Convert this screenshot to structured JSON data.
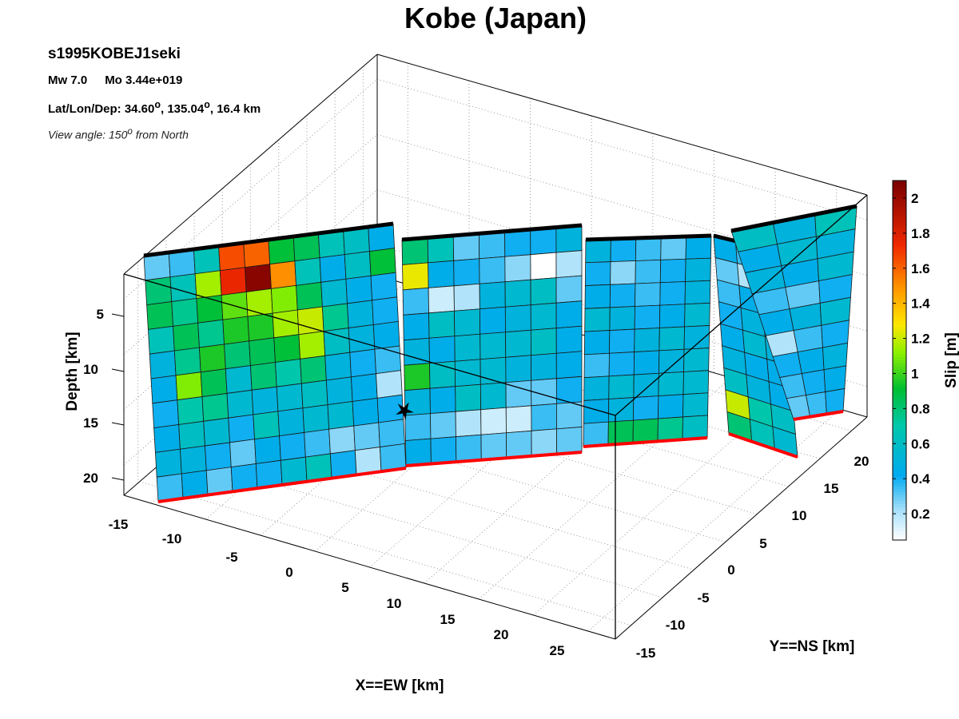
{
  "chart_data": {
    "type": "heatmap",
    "title": "Kobe (Japan)",
    "event_id": "s1995KOBEJ1seki",
    "mw": "Mw 7.0",
    "mo": "Mo 3.44e+019",
    "location_prefix": "Lat/Lon/Dep: 34.60",
    "location_lon": ", 135.04",
    "location_dep": ", 16.4 km",
    "location_deg": "o",
    "view_prefix": "View angle: 150",
    "view_deg": "o",
    "view_suffix": " from North",
    "xlabel": "X==EW [km]",
    "ylabel": "Y==NS [km]",
    "zlabel": "Depth [km]",
    "colorbar_label": "Slip [m]",
    "xticks": [
      "-15",
      "-10",
      "-5",
      "0",
      "5",
      "10",
      "15",
      "20",
      "25"
    ],
    "yticks": [
      "-15",
      "-10",
      "-5",
      "0",
      "5",
      "10",
      "15",
      "20"
    ],
    "zticks": [
      "5",
      "10",
      "15",
      "20"
    ],
    "colorbar_ticks": [
      "0.2",
      "0.4",
      "0.6",
      "0.8",
      "1",
      "1.2",
      "1.4",
      "1.6",
      "1.8",
      "2"
    ],
    "clim": [
      0.05,
      2.1
    ],
    "grid": true,
    "segments": [
      {
        "rows": 10,
        "cols": 10,
        "slip": [
          [
            0.3,
            0.35,
            0.65,
            1.65,
            1.6,
            0.9,
            0.85,
            0.65,
            0.6,
            0.45
          ],
          [
            0.8,
            0.65,
            1.15,
            1.75,
            2.05,
            1.5,
            0.65,
            0.45,
            0.6,
            0.9
          ],
          [
            0.85,
            0.75,
            0.9,
            1.05,
            1.15,
            1.1,
            0.85,
            0.55,
            0.45,
            0.4
          ],
          [
            0.65,
            0.85,
            0.75,
            0.95,
            0.95,
            1.15,
            1.2,
            0.75,
            0.5,
            0.4
          ],
          [
            0.5,
            0.75,
            0.95,
            0.8,
            0.85,
            0.9,
            1.15,
            0.6,
            0.5,
            0.45
          ],
          [
            0.45,
            1.1,
            0.85,
            0.55,
            0.8,
            0.7,
            0.8,
            0.5,
            0.4,
            0.35
          ],
          [
            0.4,
            0.7,
            0.75,
            0.55,
            0.5,
            0.55,
            0.6,
            0.5,
            0.45,
            0.2
          ],
          [
            0.45,
            0.6,
            0.55,
            0.4,
            0.65,
            0.5,
            0.55,
            0.55,
            0.45,
            0.4
          ],
          [
            0.5,
            0.5,
            0.4,
            0.3,
            0.45,
            0.4,
            0.35,
            0.25,
            0.3,
            0.35
          ],
          [
            0.35,
            0.45,
            0.3,
            0.4,
            0.4,
            0.55,
            0.65,
            0.4,
            0.2,
            0.35
          ]
        ]
      },
      {
        "rows": 9,
        "cols": 7,
        "slip": [
          [
            0.8,
            0.65,
            0.3,
            0.35,
            0.4,
            0.4,
            0.5
          ],
          [
            1.25,
            0.45,
            0.4,
            0.35,
            0.25,
            0.05,
            0.2
          ],
          [
            0.35,
            0.15,
            0.2,
            0.5,
            0.55,
            0.6,
            0.3
          ],
          [
            0.45,
            0.6,
            0.55,
            0.45,
            0.5,
            0.55,
            0.45
          ],
          [
            0.5,
            0.45,
            0.55,
            0.55,
            0.55,
            0.6,
            0.45
          ],
          [
            0.95,
            0.6,
            0.55,
            0.55,
            0.5,
            0.5,
            0.45
          ],
          [
            0.5,
            0.45,
            0.6,
            0.55,
            0.3,
            0.3,
            0.4
          ],
          [
            0.35,
            0.3,
            0.2,
            0.15,
            0.15,
            0.35,
            0.3
          ],
          [
            0.45,
            0.4,
            0.35,
            0.3,
            0.3,
            0.25,
            0.3
          ]
        ]
      },
      {
        "rows": 9,
        "cols": 5,
        "slip": [
          [
            0.5,
            0.4,
            0.35,
            0.3,
            0.45
          ],
          [
            0.4,
            0.25,
            0.35,
            0.4,
            0.5
          ],
          [
            0.45,
            0.4,
            0.35,
            0.4,
            0.5
          ],
          [
            0.55,
            0.5,
            0.4,
            0.45,
            0.55
          ],
          [
            0.45,
            0.4,
            0.5,
            0.55,
            0.5
          ],
          [
            0.35,
            0.4,
            0.45,
            0.5,
            0.55
          ],
          [
            0.5,
            0.55,
            0.5,
            0.55,
            0.55
          ],
          [
            0.45,
            0.5,
            0.4,
            0.45,
            0.55
          ],
          [
            0.35,
            0.85,
            0.85,
            0.75,
            0.6
          ]
        ]
      },
      {
        "rows": 9,
        "cols": 3,
        "slip": [
          [
            0.45,
            0.35,
            0.3
          ],
          [
            0.3,
            0.2,
            0.4
          ],
          [
            0.35,
            0.45,
            0.5
          ],
          [
            0.4,
            0.5,
            0.55
          ],
          [
            0.45,
            0.55,
            0.5
          ],
          [
            0.5,
            0.45,
            0.45
          ],
          [
            0.6,
            0.5,
            0.45
          ],
          [
            1.2,
            0.7,
            0.6
          ],
          [
            0.8,
            0.65,
            0.55
          ]
        ]
      },
      {
        "rows": 9,
        "cols": 3,
        "slip": [
          [
            0.6,
            0.5,
            0.65
          ],
          [
            0.45,
            0.55,
            0.5
          ],
          [
            0.5,
            0.45,
            0.55
          ],
          [
            0.35,
            0.3,
            0.4
          ],
          [
            0.45,
            0.5,
            0.55
          ],
          [
            0.2,
            0.35,
            0.4
          ],
          [
            0.4,
            0.45,
            0.5
          ],
          [
            0.35,
            0.4,
            0.45
          ],
          [
            0.3,
            0.35,
            0.4
          ]
        ]
      }
    ],
    "colors": {
      "top_edge": "#000000",
      "bottom_edge": "#ff0000",
      "box_lines": "#000000",
      "grid": "#888888"
    }
  }
}
